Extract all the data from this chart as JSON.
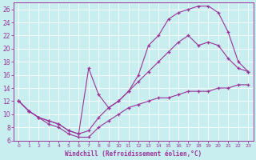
{
  "xlabel": "Windchill (Refroidissement éolien,°C)",
  "ylabel": "",
  "bg_color": "#c8eef0",
  "line_color": "#993399",
  "xlim": [
    -0.5,
    23.5
  ],
  "ylim": [
    6,
    27
  ],
  "yticks": [
    6,
    8,
    10,
    12,
    14,
    16,
    18,
    20,
    22,
    24,
    26
  ],
  "xticks": [
    0,
    1,
    2,
    3,
    4,
    5,
    6,
    7,
    8,
    9,
    10,
    11,
    12,
    13,
    14,
    15,
    16,
    17,
    18,
    19,
    20,
    21,
    22,
    23
  ],
  "curve_upper_x": [
    0,
    1,
    2,
    3,
    4,
    5,
    6,
    7,
    8,
    9,
    10,
    11,
    12,
    13,
    14,
    15,
    16,
    17,
    18,
    19,
    20,
    21,
    22,
    23
  ],
  "curve_upper_y": [
    12,
    10.5,
    9.5,
    9.0,
    8.5,
    7.5,
    7.0,
    17.0,
    13.0,
    11.0,
    12.0,
    13.5,
    16.0,
    20.5,
    22.0,
    24.5,
    25.5,
    26.0,
    26.5,
    26.5,
    25.5,
    22.5,
    18.0,
    16.5
  ],
  "curve_mid_x": [
    0,
    1,
    2,
    3,
    4,
    5,
    6,
    7,
    8,
    9,
    10,
    11,
    12,
    13,
    14,
    15,
    16,
    17,
    18,
    19,
    20,
    21,
    22,
    23
  ],
  "curve_mid_y": [
    12,
    10.5,
    9.5,
    9.0,
    8.5,
    7.5,
    7.0,
    7.5,
    9.5,
    11.0,
    12.0,
    13.5,
    15.0,
    16.5,
    18.0,
    19.5,
    21.0,
    22.0,
    20.5,
    21.0,
    20.5,
    18.5,
    17.0,
    16.5
  ],
  "curve_lower_x": [
    0,
    1,
    2,
    3,
    4,
    5,
    6,
    7,
    8,
    9,
    10,
    11,
    12,
    13,
    14,
    15,
    16,
    17,
    18,
    19,
    20,
    21,
    22,
    23
  ],
  "curve_lower_y": [
    12,
    10.5,
    9.5,
    8.5,
    8.0,
    7.0,
    6.5,
    6.5,
    8.0,
    9.0,
    10.0,
    11.0,
    11.5,
    12.0,
    12.5,
    12.5,
    13.0,
    13.5,
    13.5,
    13.5,
    14.0,
    14.0,
    14.5,
    14.5
  ]
}
